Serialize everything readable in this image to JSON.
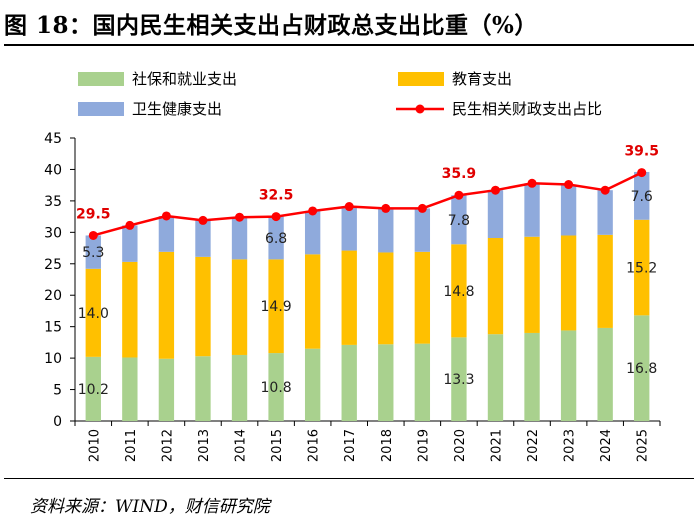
{
  "figure": {
    "title": "图 18：国内民生相关支出占财政总支出比重（%）",
    "source": "资料来源：WIND，财信研究院"
  },
  "colors": {
    "social": "#a9d18e",
    "education": "#ffc000",
    "health": "#8faadc",
    "line": "#ff0000",
    "line_label": "#e00000"
  },
  "chart_data": {
    "type": "bar",
    "stacked": true,
    "categories": [
      "2010",
      "2011",
      "2012",
      "2013",
      "2014",
      "2015",
      "2016",
      "2017",
      "2018",
      "2019",
      "2020",
      "2021",
      "2022",
      "2023",
      "2024",
      "2025"
    ],
    "series": [
      {
        "name": "社保和就业支出",
        "kind": "bar",
        "color_key": "social",
        "values": [
          10.2,
          10.1,
          9.9,
          10.3,
          10.5,
          10.8,
          11.5,
          12.1,
          12.2,
          12.3,
          13.3,
          13.8,
          14.0,
          14.4,
          14.8,
          16.8
        ]
      },
      {
        "name": "教育支出",
        "kind": "bar",
        "color_key": "education",
        "values": [
          14.0,
          15.2,
          17.0,
          15.8,
          15.2,
          14.9,
          15.0,
          15.0,
          14.6,
          14.6,
          14.8,
          15.3,
          15.3,
          15.1,
          14.8,
          15.2
        ]
      },
      {
        "name": "卫生健康支出",
        "kind": "bar",
        "color_key": "health",
        "values": [
          5.3,
          5.8,
          5.7,
          5.8,
          6.7,
          6.8,
          6.9,
          7.0,
          7.0,
          6.9,
          7.8,
          7.6,
          8.5,
          8.1,
          7.1,
          7.6
        ]
      },
      {
        "name": "民生相关财政支出占比",
        "kind": "line",
        "color_key": "line",
        "values": [
          29.5,
          31.1,
          32.6,
          31.9,
          32.4,
          32.5,
          33.4,
          34.1,
          33.8,
          33.8,
          35.9,
          36.7,
          37.8,
          37.6,
          36.7,
          39.5
        ]
      }
    ],
    "bar_labels": [
      {
        "series": 0,
        "index": 0,
        "text": "10.2"
      },
      {
        "series": 1,
        "index": 0,
        "text": "14.0"
      },
      {
        "series": 2,
        "index": 0,
        "text": "5.3"
      },
      {
        "series": 0,
        "index": 5,
        "text": "10.8"
      },
      {
        "series": 1,
        "index": 5,
        "text": "14.9"
      },
      {
        "series": 2,
        "index": 5,
        "text": "6.8"
      },
      {
        "series": 0,
        "index": 10,
        "text": "13.3"
      },
      {
        "series": 1,
        "index": 10,
        "text": "14.8"
      },
      {
        "series": 2,
        "index": 10,
        "text": "7.8"
      },
      {
        "series": 0,
        "index": 15,
        "text": "16.8"
      },
      {
        "series": 1,
        "index": 15,
        "text": "15.2"
      },
      {
        "series": 2,
        "index": 15,
        "text": "7.6"
      }
    ],
    "line_labels": [
      {
        "index": 0,
        "text": "29.5"
      },
      {
        "index": 5,
        "text": "32.5"
      },
      {
        "index": 10,
        "text": "35.9"
      },
      {
        "index": 15,
        "text": "39.5"
      }
    ],
    "ylim": [
      0,
      45
    ],
    "yticks": [
      0,
      5,
      10,
      15,
      20,
      25,
      30,
      35,
      40,
      45
    ],
    "title": "",
    "xlabel": "",
    "ylabel": "",
    "legend_position": "top"
  }
}
